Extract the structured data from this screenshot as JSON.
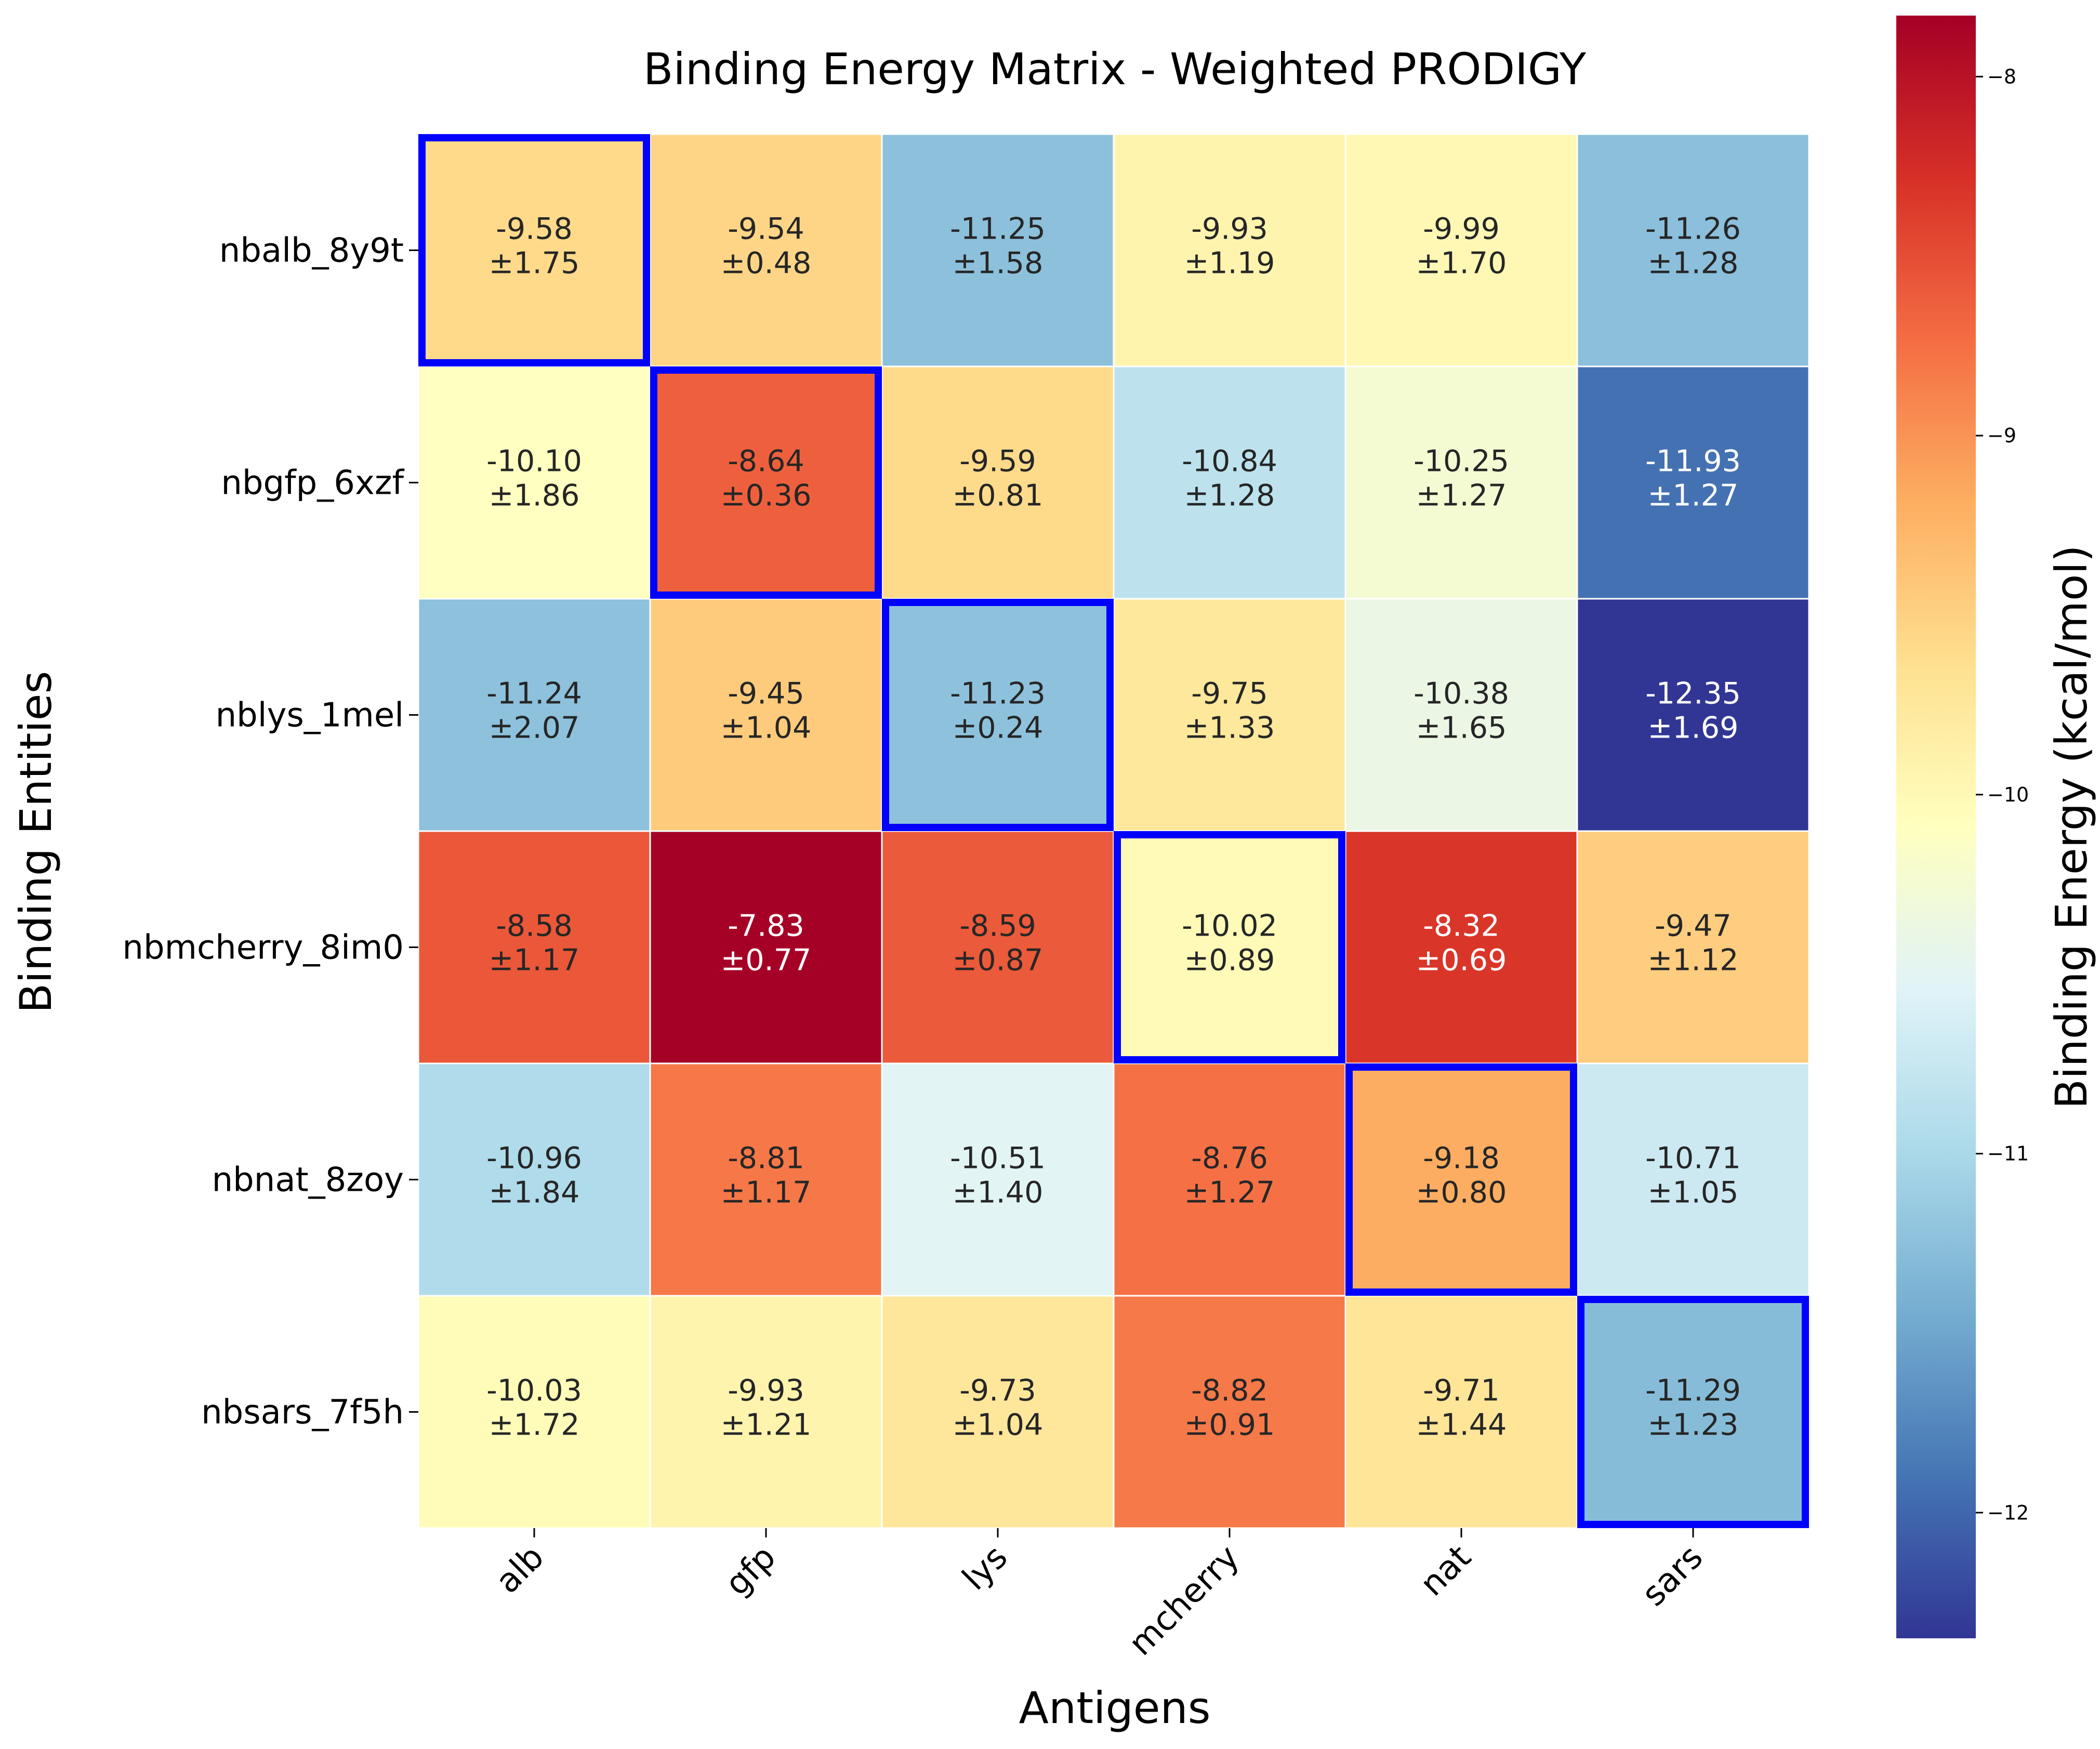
{
  "chart_data": {
    "type": "heatmap",
    "title": "Binding Energy Matrix - Weighted PRODIGY",
    "xlabel": "Antigens",
    "ylabel": "Binding Entities",
    "x_categories": [
      "alb",
      "gfp",
      "lys",
      "mcherry",
      "nat",
      "sars"
    ],
    "y_categories": [
      "nbalb_8y9t",
      "nbgfp_6xzf",
      "nblys_1mel",
      "nbmcherry_8im0",
      "nbnat_8zoy",
      "nbsars_7f5h"
    ],
    "values": [
      [
        -9.58,
        -9.54,
        -11.25,
        -9.93,
        -9.99,
        -11.26
      ],
      [
        -10.1,
        -8.64,
        -9.59,
        -10.84,
        -10.25,
        -11.93
      ],
      [
        -11.24,
        -9.45,
        -11.23,
        -9.75,
        -10.38,
        -12.35
      ],
      [
        -8.58,
        -7.83,
        -8.59,
        -10.02,
        -8.32,
        -9.47
      ],
      [
        -10.96,
        -8.81,
        -10.51,
        -8.76,
        -9.18,
        -10.71
      ],
      [
        -10.03,
        -9.93,
        -9.73,
        -8.82,
        -9.71,
        -11.29
      ]
    ],
    "errors": [
      [
        1.75,
        0.48,
        1.58,
        1.19,
        1.7,
        1.28
      ],
      [
        1.86,
        0.36,
        0.81,
        1.28,
        1.27,
        1.27
      ],
      [
        2.07,
        1.04,
        0.24,
        1.33,
        1.65,
        1.69
      ],
      [
        1.17,
        0.77,
        0.87,
        0.89,
        0.69,
        1.12
      ],
      [
        1.84,
        1.17,
        1.4,
        1.27,
        0.8,
        1.05
      ],
      [
        1.72,
        1.21,
        1.04,
        0.91,
        1.44,
        1.23
      ]
    ],
    "mean_labels": [
      [
        "-9.58",
        "-9.54",
        "-11.25",
        "-9.93",
        "-9.99",
        "-11.26"
      ],
      [
        "-10.10",
        "-8.64",
        "-9.59",
        "-10.84",
        "-10.25",
        "-11.93"
      ],
      [
        "-11.24",
        "-9.45",
        "-11.23",
        "-9.75",
        "-10.38",
        "-12.35"
      ],
      [
        "-8.58",
        "-7.83",
        "-8.59",
        "-10.02",
        "-8.32",
        "-9.47"
      ],
      [
        "-10.96",
        "-8.81",
        "-10.51",
        "-8.76",
        "-9.18",
        "-10.71"
      ],
      [
        "-10.03",
        "-9.93",
        "-9.73",
        "-8.82",
        "-9.71",
        "-11.29"
      ]
    ],
    "error_labels": [
      [
        "±1.75",
        "±0.48",
        "±1.58",
        "±1.19",
        "±1.70",
        "±1.28"
      ],
      [
        "±1.86",
        "±0.36",
        "±0.81",
        "±1.28",
        "±1.27",
        "±1.27"
      ],
      [
        "±2.07",
        "±1.04",
        "±0.24",
        "±1.33",
        "±1.65",
        "±1.69"
      ],
      [
        "±1.17",
        "±0.77",
        "±0.87",
        "±0.89",
        "±0.69",
        "±1.12"
      ],
      [
        "±1.84",
        "±1.17",
        "±1.40",
        "±1.27",
        "±0.80",
        "±1.05"
      ],
      [
        "±1.72",
        "±1.21",
        "±1.04",
        "±0.91",
        "±1.44",
        "±1.23"
      ]
    ],
    "highlighted_diagonal": true,
    "highlight_color": "#0000ff",
    "colormap": "RdYlBu_r",
    "colorbar": {
      "label": "Binding Energy (kcal/mol)",
      "range": [
        -12.35,
        -7.83
      ],
      "ticks": [
        -8,
        -9,
        -10,
        -11,
        -12
      ],
      "tick_labels": [
        "−8",
        "−9",
        "−10",
        "−11",
        "−12"
      ]
    }
  }
}
